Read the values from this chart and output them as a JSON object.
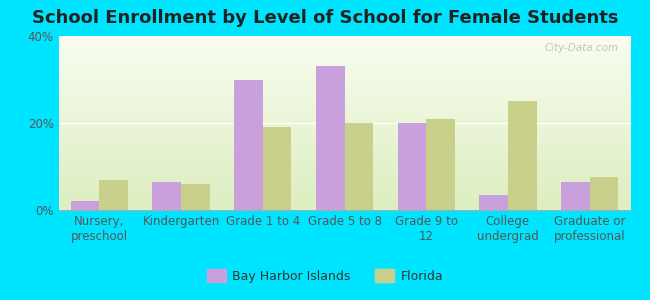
{
  "title": "School Enrollment by Level of School for Female Students",
  "categories": [
    "Nursery,\npreschool",
    "Kindergarten",
    "Grade 1 to 4",
    "Grade 5 to 8",
    "Grade 9 to\n12",
    "College\nundergrad",
    "Graduate or\nprofessional"
  ],
  "bay_harbor": [
    2.0,
    6.5,
    30.0,
    33.0,
    20.0,
    3.5,
    6.5
  ],
  "florida": [
    7.0,
    6.0,
    19.0,
    20.0,
    21.0,
    25.0,
    7.5
  ],
  "bay_harbor_color": "#c9a0dc",
  "florida_color": "#c8d08c",
  "background_outer": "#00e5ff",
  "ylim": [
    0,
    40
  ],
  "yticks": [
    0,
    20,
    40
  ],
  "ytick_labels": [
    "0%",
    "20%",
    "40%"
  ],
  "watermark": "City-Data.com",
  "legend_labels": [
    "Bay Harbor Islands",
    "Florida"
  ],
  "bar_width": 0.35,
  "title_fontsize": 13,
  "tick_fontsize": 8.5,
  "legend_fontsize": 9
}
